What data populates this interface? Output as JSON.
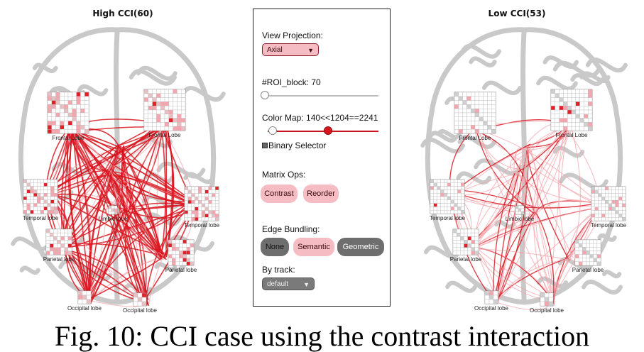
{
  "left_panel": {
    "title": "High CCI(60)",
    "labels": {
      "frontal_l": "Frontal Lobe",
      "frontal_r": "Frontal Lobe",
      "temporal_l": "Temporal lobe",
      "temporal_r": "Temporal lobe",
      "limbic": "Limbic lobe",
      "parietal_l": "Parietal lobe",
      "parietal_r": "Parietal lobe",
      "occipital_l": "Occipital lobe",
      "occipital_r": "Occipital lobe"
    }
  },
  "right_panel": {
    "title": "Low CCI(53)",
    "labels": {
      "frontal_l": "Frontal Lobe",
      "frontal_r": "Frontal Lobe",
      "temporal_l": "Temporal lobe",
      "temporal_r": "Temporal lobe",
      "limbic": "Limbic lobe",
      "parietal_l": "Parietal lobe",
      "parietal_r": "Parietal lobe",
      "occipital_l": "Occipital lobe",
      "occipital_r": "Occipital lobe"
    }
  },
  "controls": {
    "view_projection_label": "View Projection:",
    "view_projection_value": "Axial",
    "roi_block_label": "#ROI_block: 70",
    "color_map_label": "Color Map: 140<<1204==2241",
    "binary_selector_label": "Binary Selector",
    "matrix_ops_label": "Matrix Ops:",
    "contrast_button": "Contrast",
    "reorder_button": "Reorder",
    "edge_bundling_label": "Edge Bundling:",
    "none_button": "None",
    "semantic_button": "Semantic",
    "geometric_button": "Geometric",
    "by_track_label": "By track:",
    "by_track_value": "default",
    "roi_block_level": 0.0,
    "color_map_low_level": 0.07,
    "color_map_high_level": 0.57
  },
  "colors": {
    "strong_edge": "#d8151f",
    "weak_edge": "#f3a3aa",
    "brain_outline": "#c9c9c9",
    "button_pink": "#f5bcc3",
    "button_gray": "#6e6e6e"
  },
  "caption": "Fig. 10: CCI case using the contrast interaction"
}
